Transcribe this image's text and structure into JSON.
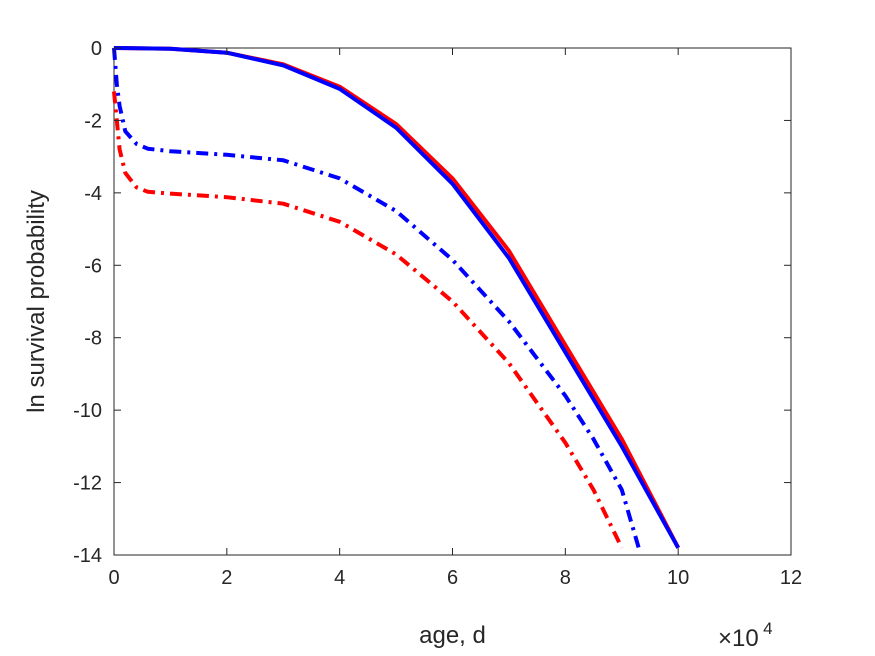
{
  "chart_data": {
    "type": "line",
    "title": "",
    "xlabel": "age, d",
    "ylabel": "ln survival probability",
    "x_exponent_label": {
      "base": "×10",
      "exponent": "4"
    },
    "xlim": [
      0,
      120000
    ],
    "ylim": [
      -14,
      0
    ],
    "x_tick_values": [
      0,
      20000,
      40000,
      60000,
      80000,
      100000,
      120000
    ],
    "x_tick_labels": [
      "0",
      "2",
      "4",
      "6",
      "8",
      "10",
      "12"
    ],
    "y_tick_values": [
      0,
      -2,
      -4,
      -6,
      -8,
      -10,
      -12,
      -14
    ],
    "y_tick_labels": [
      "0",
      "-2",
      "-4",
      "-6",
      "-8",
      "-10",
      "-12",
      "-14"
    ],
    "grid": false,
    "legend": "none",
    "series": [
      {
        "color": "#ff0000",
        "style": "solid",
        "x": [
          0,
          10000,
          20000,
          30000,
          40000,
          50000,
          60000,
          70000,
          80000,
          90000,
          100000
        ],
        "y": [
          0,
          -0.02,
          -0.13,
          -0.45,
          -1.07,
          -2.1,
          -3.6,
          -5.6,
          -8.2,
          -10.8,
          -13.8
        ]
      },
      {
        "color": "#0000ff",
        "style": "solid",
        "x": [
          0,
          10000,
          20000,
          30000,
          40000,
          50000,
          60000,
          70000,
          80000,
          90000,
          100000
        ],
        "y": [
          0,
          -0.02,
          -0.13,
          -0.48,
          -1.13,
          -2.2,
          -3.75,
          -5.8,
          -8.4,
          -11.0,
          -13.8
        ]
      },
      {
        "color": "#0000ff",
        "style": "dashdot",
        "x": [
          0,
          500,
          1000,
          2000,
          4000,
          6000,
          10000,
          20000,
          30000,
          40000,
          50000,
          60000,
          70000,
          80000,
          85000,
          90000,
          93000
        ],
        "y": [
          0,
          -1.0,
          -1.6,
          -2.3,
          -2.65,
          -2.78,
          -2.85,
          -2.95,
          -3.1,
          -3.6,
          -4.5,
          -5.85,
          -7.55,
          -9.6,
          -10.8,
          -12.2,
          -13.8
        ]
      },
      {
        "color": "#ff0000",
        "style": "dashdot",
        "x": [
          0,
          500,
          1000,
          2000,
          4000,
          6000,
          10000,
          20000,
          30000,
          40000,
          50000,
          60000,
          70000,
          80000,
          85000,
          90000
        ],
        "y": [
          -1.2,
          -2.0,
          -2.8,
          -3.45,
          -3.85,
          -3.97,
          -4.02,
          -4.12,
          -4.3,
          -4.8,
          -5.7,
          -7.0,
          -8.7,
          -10.9,
          -12.2,
          -13.8
        ]
      }
    ]
  }
}
